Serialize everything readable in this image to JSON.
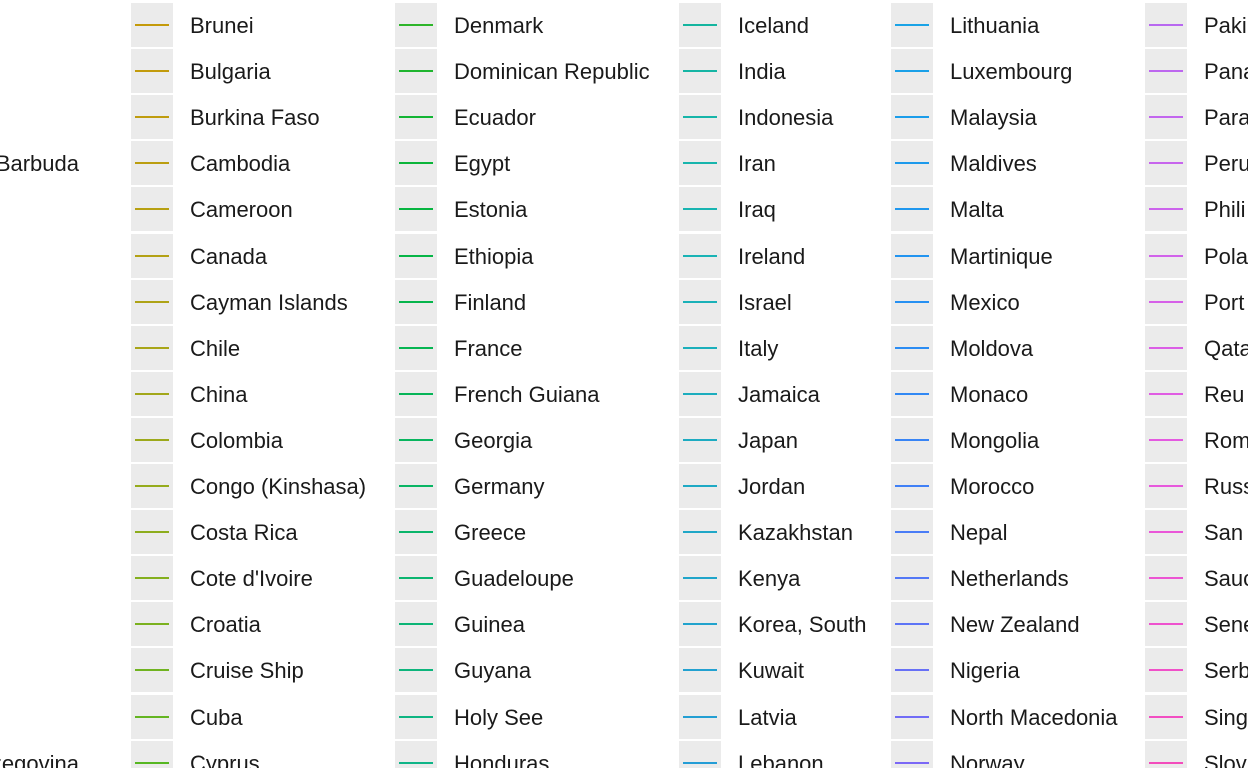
{
  "chart_data": {
    "type": "line",
    "legend": {
      "edge_labels": [
        {
          "text": "Barbuda",
          "row": 3
        },
        {
          "text": "erzegovina",
          "row": 16
        }
      ],
      "columns": [
        {
          "items": [
            {
              "label": "Brunei",
              "color": "#c49a0a"
            },
            {
              "label": "Bulgaria",
              "color": "#c29b0c"
            },
            {
              "label": "Burkina Faso",
              "color": "#bf9c0e"
            },
            {
              "label": "Cambodia",
              "color": "#bb9e10"
            },
            {
              "label": "Cameroon",
              "color": "#b7a012"
            },
            {
              "label": "Canada",
              "color": "#b3a114"
            },
            {
              "label": "Cayman Islands",
              "color": "#aea316"
            },
            {
              "label": "Chile",
              "color": "#a8a518"
            },
            {
              "label": "China",
              "color": "#a2a71a"
            },
            {
              "label": "Colombia",
              "color": "#9ca91b"
            },
            {
              "label": "Congo (Kinshasa)",
              "color": "#95ab1c"
            },
            {
              "label": "Costa Rica",
              "color": "#8dad1d"
            },
            {
              "label": "Cote d'Ivoire",
              "color": "#84af1e"
            },
            {
              "label": "Croatia",
              "color": "#7bb11f"
            },
            {
              "label": "Cruise Ship",
              "color": "#70b320"
            },
            {
              "label": "Cuba",
              "color": "#64b521"
            },
            {
              "label": "Cyprus",
              "color": "#57b722"
            }
          ]
        },
        {
          "items": [
            {
              "label": "Denmark",
              "color": "#2eb52a"
            },
            {
              "label": "Dominican Republic",
              "color": "#1fb52f"
            },
            {
              "label": "Ecuador",
              "color": "#13b534"
            },
            {
              "label": "Egypt",
              "color": "#0bb53a"
            },
            {
              "label": "Estonia",
              "color": "#07b540"
            },
            {
              "label": "Ethiopia",
              "color": "#06b546"
            },
            {
              "label": "Finland",
              "color": "#06b54c"
            },
            {
              "label": "France",
              "color": "#06b552"
            },
            {
              "label": "French Guiana",
              "color": "#07b558"
            },
            {
              "label": "Georgia",
              "color": "#08b55e"
            },
            {
              "label": "Germany",
              "color": "#09b564"
            },
            {
              "label": "Greece",
              "color": "#0ab56a"
            },
            {
              "label": "Guadeloupe",
              "color": "#0bb570"
            },
            {
              "label": "Guinea",
              "color": "#0cb576"
            },
            {
              "label": "Guyana",
              "color": "#0db57c"
            },
            {
              "label": "Holy See",
              "color": "#0eb582"
            },
            {
              "label": "Honduras",
              "color": "#0fb588"
            }
          ]
        },
        {
          "items": [
            {
              "label": "Iceland",
              "color": "#14b59f"
            },
            {
              "label": "India",
              "color": "#15b5a4"
            },
            {
              "label": "Indonesia",
              "color": "#16b5a9"
            },
            {
              "label": "Iran",
              "color": "#17b5ad"
            },
            {
              "label": "Iraq",
              "color": "#18b4b1"
            },
            {
              "label": "Ireland",
              "color": "#19b3b5"
            },
            {
              "label": "Israel",
              "color": "#1ab1b8"
            },
            {
              "label": "Italy",
              "color": "#1bafbb"
            },
            {
              "label": "Jamaica",
              "color": "#1cadbe"
            },
            {
              "label": "Japan",
              "color": "#1dabc1"
            },
            {
              "label": "Jordan",
              "color": "#1ea9c4"
            },
            {
              "label": "Kazakhstan",
              "color": "#1fa7c7"
            },
            {
              "label": "Kenya",
              "color": "#20a5ca"
            },
            {
              "label": "Korea, South",
              "color": "#21a3cd"
            },
            {
              "label": "Kuwait",
              "color": "#22a1d0"
            },
            {
              "label": "Latvia",
              "color": "#239fd3"
            },
            {
              "label": "Lebanon",
              "color": "#249dd6"
            }
          ]
        },
        {
          "items": [
            {
              "label": "Lithuania",
              "color": "#1aa3e6"
            },
            {
              "label": "Luxembourg",
              "color": "#1aa0e8"
            },
            {
              "label": "Malaysia",
              "color": "#1b9dea"
            },
            {
              "label": "Maldives",
              "color": "#1d9aec"
            },
            {
              "label": "Malta",
              "color": "#1f97ee"
            },
            {
              "label": "Martinique",
              "color": "#2294f0"
            },
            {
              "label": "Mexico",
              "color": "#2690f2"
            },
            {
              "label": "Moldova",
              "color": "#2b8cf3"
            },
            {
              "label": "Monaco",
              "color": "#3188f4"
            },
            {
              "label": "Mongolia",
              "color": "#3884f5"
            },
            {
              "label": "Morocco",
              "color": "#4080f6"
            },
            {
              "label": "Nepal",
              "color": "#497cf6"
            },
            {
              "label": "Netherlands",
              "color": "#5378f6"
            },
            {
              "label": "New Zealand",
              "color": "#5d74f6"
            },
            {
              "label": "Nigeria",
              "color": "#6770f6"
            },
            {
              "label": "North Macedonia",
              "color": "#716cf6"
            },
            {
              "label": "Norway",
              "color": "#7b68f6"
            }
          ]
        },
        {
          "items": [
            {
              "label": "Paki",
              "color": "#b868f0"
            },
            {
              "label": "Pana",
              "color": "#bd67ef"
            },
            {
              "label": "Para",
              "color": "#c266ee"
            },
            {
              "label": "Peru",
              "color": "#c765ed"
            },
            {
              "label": "Phili",
              "color": "#cc63ec"
            },
            {
              "label": "Pola",
              "color": "#d162ea"
            },
            {
              "label": "Port",
              "color": "#d660e8"
            },
            {
              "label": "Qata",
              "color": "#db5ee6"
            },
            {
              "label": "Reu",
              "color": "#e05ce3"
            },
            {
              "label": "Rom",
              "color": "#e45ae0"
            },
            {
              "label": "Russ",
              "color": "#e758dc"
            },
            {
              "label": "San",
              "color": "#ea56d8"
            },
            {
              "label": "Sauc",
              "color": "#ec54d3"
            },
            {
              "label": "Sene",
              "color": "#ee52ce"
            },
            {
              "label": "Serb",
              "color": "#f050c8"
            },
            {
              "label": "Sing",
              "color": "#f24ec2"
            },
            {
              "label": "Slov",
              "color": "#f34cbc"
            }
          ]
        }
      ]
    }
  }
}
